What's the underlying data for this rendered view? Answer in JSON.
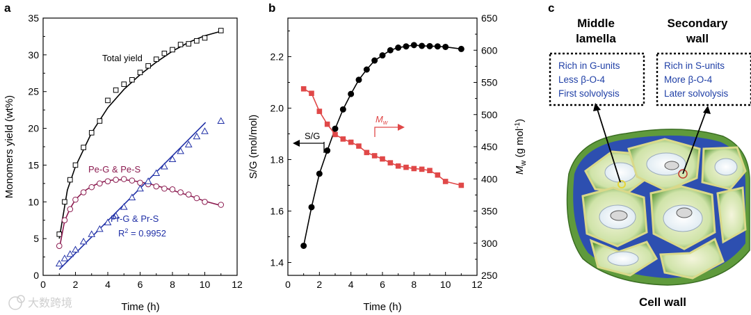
{
  "panels": {
    "a": "a",
    "b": "b",
    "c": "c"
  },
  "chart_data": [
    {
      "type": "line",
      "panel": "a",
      "xlabel": "Time (h)",
      "ylabel": "Monomers yield (wt%)",
      "xlim": [
        0,
        12
      ],
      "ylim": [
        0,
        35
      ],
      "xticks": [
        0,
        2,
        4,
        6,
        8,
        10,
        12
      ],
      "yticks": [
        0,
        5,
        10,
        15,
        20,
        25,
        30,
        35
      ],
      "series": [
        {
          "name": "Total yield",
          "marker": "square",
          "color": "#000000",
          "x": [
            1,
            1.33,
            1.67,
            2,
            2.5,
            3,
            3.5,
            4,
            4.5,
            5,
            5.5,
            6,
            6.5,
            7,
            7.5,
            8,
            8.5,
            9,
            9.5,
            10,
            11
          ],
          "values": [
            5.6,
            10.0,
            13.0,
            15.0,
            17.4,
            19.4,
            21.0,
            23.8,
            25.2,
            26.0,
            26.6,
            27.6,
            28.5,
            29.4,
            30.2,
            30.7,
            31.4,
            31.5,
            31.9,
            32.3,
            33.3
          ],
          "fit_x": [
            1,
            1.5,
            2,
            3,
            4,
            5,
            6,
            7,
            8,
            9,
            10,
            11
          ],
          "fit_y": [
            5.0,
            11.6,
            14.8,
            19.4,
            22.8,
            25.3,
            27.3,
            29.0,
            30.5,
            31.7,
            32.6,
            33.2
          ]
        },
        {
          "name": "Pe-G & Pe-S",
          "marker": "circle",
          "color": "#8b1a4f",
          "x": [
            1,
            1.33,
            1.67,
            2,
            2.5,
            3,
            3.5,
            4,
            4.5,
            5,
            5.5,
            6,
            6.5,
            7,
            7.5,
            8,
            8.5,
            9,
            9.5,
            10,
            11
          ],
          "values": [
            4.0,
            7.5,
            9.0,
            10.3,
            11.3,
            12.0,
            12.5,
            12.8,
            13.0,
            13.1,
            12.9,
            12.6,
            12.4,
            12.1,
            11.8,
            11.7,
            11.3,
            11.0,
            10.5,
            10.0,
            9.6
          ],
          "fit_x": [
            1,
            1.33,
            1.67,
            2,
            2.5,
            3,
            3.5,
            4,
            4.5,
            5,
            5.5,
            6,
            6.5,
            7,
            7.5,
            8,
            8.5,
            9,
            9.5,
            10,
            11
          ],
          "fit_y": [
            3.6,
            7.4,
            9.1,
            10.3,
            11.4,
            12.1,
            12.6,
            12.9,
            13.0,
            13.0,
            12.9,
            12.7,
            12.5,
            12.2,
            11.9,
            11.6,
            11.2,
            10.9,
            10.5,
            10.1,
            9.5
          ]
        },
        {
          "name": "Pr-G & Pr-S",
          "marker": "triangle",
          "color": "#1f2fa6",
          "x": [
            1,
            1.33,
            1.67,
            2,
            2.5,
            3,
            3.5,
            4,
            4.5,
            5,
            5.5,
            6,
            6.5,
            7,
            7.5,
            8,
            8.5,
            9,
            9.5,
            10,
            11
          ],
          "values": [
            1.6,
            2.3,
            2.9,
            3.5,
            4.6,
            5.6,
            6.3,
            7.2,
            8.1,
            9.3,
            10.6,
            11.8,
            12.8,
            13.9,
            14.8,
            15.8,
            16.9,
            17.8,
            18.9,
            19.6,
            21.0
          ],
          "fit_x": [
            1,
            10.05
          ],
          "fit_y": [
            0.8,
            20.8
          ],
          "r2": "0.9952"
        }
      ],
      "annotations": {
        "total": "Total yield",
        "pe": "Pe-G & Pe-S",
        "pr": "Pr-G & Pr-S",
        "r2_prefix": "R",
        "r2_sup": "2",
        "r2_suffix": " = 0.9952"
      }
    },
    {
      "type": "line",
      "panel": "b",
      "xlabel": "Time (h)",
      "ylabel_left": "S/G (mol/mol)",
      "ylabel_right_main": "M",
      "ylabel_right_sub": "w",
      "ylabel_right_unit": " (g mol",
      "ylabel_right_sup": "-1",
      "ylabel_right_close": ")",
      "xlim": [
        0,
        12
      ],
      "ylim_left": [
        1.35,
        2.35
      ],
      "ylim_right": [
        250,
        650
      ],
      "xticks": [
        0,
        2,
        4,
        6,
        8,
        10,
        12
      ],
      "yticks_left": [
        1.4,
        1.6,
        1.8,
        2.0,
        2.2
      ],
      "yticks_right": [
        250,
        300,
        350,
        400,
        450,
        500,
        550,
        600,
        650
      ],
      "series": [
        {
          "name": "S/G",
          "axis": "left",
          "marker": "circle",
          "color": "#000000",
          "x": [
            1,
            1.5,
            2,
            2.5,
            3,
            3.5,
            4,
            4.5,
            5,
            5.5,
            6,
            6.5,
            7,
            7.5,
            8,
            8.5,
            9,
            9.5,
            10,
            11
          ],
          "values": [
            1.465,
            1.615,
            1.745,
            1.835,
            1.92,
            1.995,
            2.055,
            2.11,
            2.15,
            2.185,
            2.205,
            2.225,
            2.235,
            2.24,
            2.245,
            2.242,
            2.241,
            2.24,
            2.238,
            2.23
          ]
        },
        {
          "name": "Mw",
          "axis": "right",
          "marker": "square",
          "color": "#e04848",
          "x": [
            1,
            1.5,
            2,
            2.5,
            3,
            3.5,
            4,
            4.5,
            5,
            5.5,
            6,
            6.5,
            7,
            7.5,
            8,
            8.5,
            9,
            9.5,
            10,
            11
          ],
          "values": [
            540,
            533,
            505,
            485,
            469,
            462,
            457,
            451,
            441,
            436,
            431,
            425,
            420,
            418,
            416,
            415,
            413,
            406,
            396,
            390
          ]
        }
      ],
      "annotations": {
        "sg": "S/G",
        "mw_main": "M",
        "mw_sub": "w"
      }
    }
  ],
  "panel_c": {
    "middle_title_1": "Middle",
    "middle_title_2": "lamella",
    "secondary_title_1": "Secondary",
    "secondary_title_2": "wall",
    "left_box": [
      "Rich in G-units",
      "Less  β-O-4",
      "First solvolysis"
    ],
    "right_box": [
      "Rich in S-units",
      "More  β-O-4",
      "Later solvolysis"
    ],
    "caption": "Cell wall"
  },
  "watermark": "大数跨境"
}
